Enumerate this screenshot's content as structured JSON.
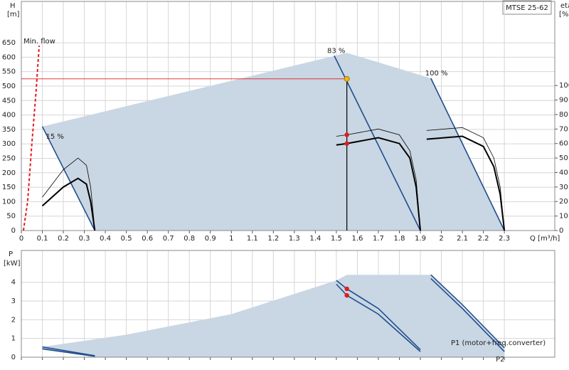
{
  "chart_data": [
    {
      "type": "line",
      "model": "MTSE 25-62",
      "y_label": "H",
      "y_unit": "[m]",
      "y2_label": "eta",
      "y2_unit": "[%]",
      "x_label": "Q [m³/h]",
      "xlim": [
        0,
        2.54
      ],
      "ylim": [
        0,
        793
      ],
      "y2lim": [
        0,
        158
      ],
      "grid": true,
      "xticks": [
        0,
        0.1,
        0.2,
        0.3,
        0.4,
        0.5,
        0.6,
        0.7,
        0.8,
        0.9,
        1,
        1.1,
        1.2,
        1.3,
        1.4,
        1.5,
        1.6,
        1.7,
        1.8,
        1.9,
        2,
        2.1,
        2.2,
        2.3
      ],
      "yticks": [
        0,
        50,
        100,
        150,
        200,
        250,
        300,
        350,
        400,
        450,
        500,
        550,
        600,
        650
      ],
      "y2ticks": [
        0,
        10,
        20,
        30,
        40,
        50,
        60,
        70,
        80,
        90,
        100
      ],
      "areas": [
        {
          "color": "#c9d6e3",
          "x": [
            0.1,
            1.55,
            1.95,
            2.3,
            0.35
          ],
          "values": [
            360,
            615,
            527,
            0,
            0
          ]
        }
      ],
      "series": [
        {
          "name": "Min. flow",
          "color": "#e31a1c",
          "dash": true,
          "x": [
            0.01,
            0.03,
            0.05,
            0.07,
            0.085
          ],
          "values": [
            0,
            100,
            300,
            480,
            640
          ]
        },
        {
          "name": "15 %",
          "color": "#1f4e8c",
          "x": [
            0.1,
            0.35
          ],
          "values": [
            360,
            0
          ]
        },
        {
          "name": "83 %",
          "color": "#1f4e8c",
          "x": [
            1.49,
            1.9
          ],
          "values": [
            605,
            0
          ]
        },
        {
          "name": "100 %",
          "color": "#1f4e8c",
          "x": [
            1.95,
            2.3
          ],
          "values": [
            527,
            0
          ]
        },
        {
          "color": "#000000",
          "axis": "y2",
          "x": [
            0.1,
            0.2,
            0.27,
            0.31,
            0.33,
            0.35
          ],
          "values": [
            23,
            42,
            50,
            45,
            30,
            0
          ]
        },
        {
          "color": "#000000",
          "axis": "y2",
          "thick": true,
          "x": [
            0.1,
            0.2,
            0.27,
            0.31,
            0.33,
            0.35
          ],
          "values": [
            17,
            30,
            36,
            32,
            20,
            0
          ]
        },
        {
          "color": "#000000",
          "axis": "y2",
          "x": [
            1.5,
            1.55,
            1.7,
            1.8,
            1.85,
            1.88,
            1.9
          ],
          "values": [
            65,
            66,
            70,
            66,
            55,
            35,
            0
          ]
        },
        {
          "color": "#000000",
          "axis": "y2",
          "thick": true,
          "x": [
            1.5,
            1.55,
            1.7,
            1.8,
            1.85,
            1.88,
            1.9
          ],
          "values": [
            59,
            60,
            64,
            60,
            50,
            30,
            0
          ]
        },
        {
          "color": "#000000",
          "axis": "y2",
          "x": [
            1.93,
            2.1,
            2.2,
            2.25,
            2.28,
            2.3
          ],
          "values": [
            69,
            71,
            64,
            50,
            30,
            0
          ]
        },
        {
          "color": "#000000",
          "axis": "y2",
          "thick": true,
          "x": [
            1.93,
            2.1,
            2.2,
            2.25,
            2.28,
            2.3
          ],
          "values": [
            63,
            65,
            58,
            44,
            25,
            0
          ]
        }
      ],
      "operating_point": {
        "x": 1.55,
        "y": 525,
        "color": "#f5b800",
        "line_color": "#e31a1c"
      },
      "points": [
        {
          "x": 1.55,
          "y": 66,
          "axis": "y2",
          "color": "#e31a1c"
        },
        {
          "x": 1.55,
          "y": 60,
          "axis": "y2",
          "color": "#e31a1c"
        }
      ]
    },
    {
      "type": "line",
      "y_label": "P",
      "y_unit": "[kW]",
      "xlim": [
        0,
        2.54
      ],
      "ylim": [
        0,
        5.7
      ],
      "grid": true,
      "yticks": [
        0,
        1,
        2,
        3,
        4
      ],
      "areas": [
        {
          "color": "#c9d6e3",
          "x": [
            0.1,
            0.5,
            1.0,
            1.5,
            1.55,
            1.95,
            2.3,
            2.3,
            0.35,
            0.1
          ],
          "values": [
            0.55,
            1.2,
            2.3,
            4.1,
            4.4,
            4.4,
            0.45,
            0,
            0,
            0.4
          ]
        }
      ],
      "series": [
        {
          "color": "#1f4e8c",
          "x": [
            0.1,
            0.35
          ],
          "values": [
            0.55,
            0.08
          ]
        },
        {
          "color": "#1f4e8c",
          "x": [
            0.1,
            0.35
          ],
          "values": [
            0.45,
            0.05
          ]
        },
        {
          "color": "#1f4e8c",
          "x": [
            1.5,
            1.55,
            1.7,
            1.9
          ],
          "values": [
            4.1,
            3.65,
            2.6,
            0.4
          ]
        },
        {
          "color": "#1f4e8c",
          "x": [
            1.5,
            1.55,
            1.7,
            1.9
          ],
          "values": [
            3.9,
            3.3,
            2.3,
            0.3
          ]
        },
        {
          "name": "P1 (motor+freq.converter)",
          "color": "#1f4e8c",
          "x": [
            1.95,
            2.1,
            2.3
          ],
          "values": [
            4.4,
            2.8,
            0.5
          ]
        },
        {
          "name": "P2",
          "color": "#1f4e8c",
          "x": [
            1.95,
            2.1,
            2.3
          ],
          "values": [
            4.2,
            2.6,
            0.3
          ]
        }
      ],
      "points": [
        {
          "x": 1.55,
          "y": 3.65,
          "color": "#e31a1c"
        },
        {
          "x": 1.55,
          "y": 3.3,
          "color": "#e31a1c"
        }
      ]
    }
  ]
}
